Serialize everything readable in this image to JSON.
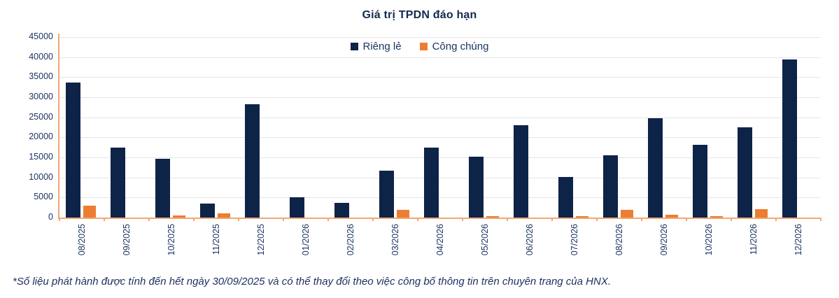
{
  "page": {
    "background": "#ffffff"
  },
  "title": "Giá trị TPDN đáo hạn",
  "footnote": "*Số liệu phát hành được tính đến hết ngày 30/09/2025 và có thể thay đổi theo việc công bố thông tin trên chuyên trang của HNX.",
  "colors": {
    "navy": "#0E2348",
    "orange": "#ED7D31",
    "axis_line": "#EFA873",
    "gridline": "#E5E5E5",
    "text": "#1C3461",
    "title_text": "#14294E"
  },
  "chart_data": {
    "type": "bar",
    "title": "Giá trị TPDN đáo hạn",
    "categories": [
      "08/2025",
      "09/2025",
      "10/2025",
      "11/2025",
      "12/2025",
      "01/2026",
      "02/2026",
      "03/2026",
      "04/2026",
      "05/2026",
      "06/2026",
      "07/2026",
      "08/2026",
      "09/2026",
      "10/2026",
      "11/2026",
      "12/2026"
    ],
    "series": [
      {
        "name": "Riêng lẻ",
        "color": "#0E2348",
        "values": [
          33600,
          17400,
          14700,
          3500,
          28300,
          5000,
          3700,
          11700,
          17500,
          15200,
          23000,
          10100,
          15500,
          24700,
          18100,
          22500,
          39500
        ]
      },
      {
        "name": "Công chúng",
        "color": "#ED7D31",
        "values": [
          2900,
          0,
          500,
          1000,
          0,
          0,
          0,
          1900,
          0,
          300,
          0,
          300,
          2000,
          700,
          400,
          2100,
          0
        ]
      }
    ],
    "xlabel": "",
    "ylabel": "",
    "ylim": [
      0,
      45000
    ],
    "ytick_step": 5000,
    "grid": true,
    "legend_position": "top-center",
    "x_tick_label_rotation": 90
  }
}
